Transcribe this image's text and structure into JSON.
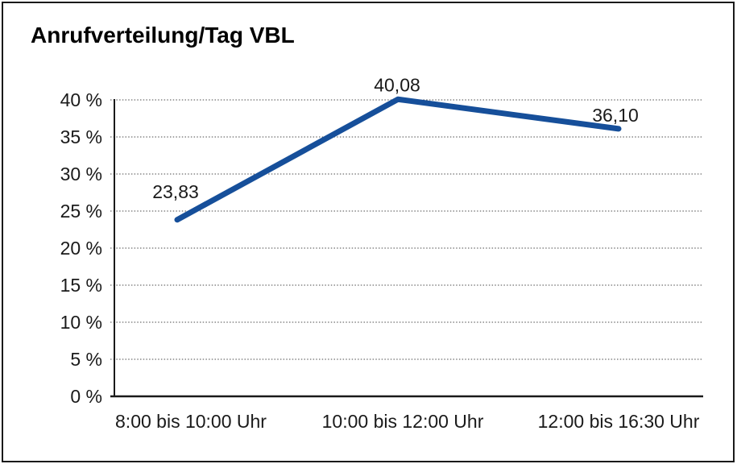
{
  "panel": {
    "background": "#ffffff",
    "border_color": "#1a1a1a"
  },
  "chart_data": {
    "type": "line",
    "title": "Anrufverteilung/Tag VBL",
    "categories": [
      "8:00 bis 10:00 Uhr",
      "10:00 bis 12:00 Uhr",
      "12:00 bis 16:30 Uhr"
    ],
    "series": [
      {
        "values": [
          23.83,
          40.08,
          36.1
        ],
        "point_labels": [
          "23,83",
          "40,08",
          "36,10"
        ],
        "color": "#164F9A"
      }
    ],
    "xlabel": "",
    "ylabel": "",
    "ylim": [
      0,
      40
    ],
    "ytick_step": 5,
    "ytick_labels": [
      "0 %",
      "5 %",
      "10 %",
      "15 %",
      "20 %",
      "25 %",
      "30 %",
      "35 %",
      "40 %"
    ],
    "grid": "horizontal-dotted",
    "grid_color": "#4a4a4a",
    "axis_color": "#1a1a1a",
    "legend": "none"
  }
}
